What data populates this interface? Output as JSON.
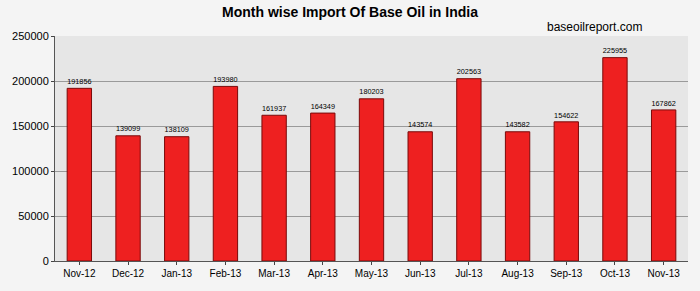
{
  "chart_data": {
    "type": "bar",
    "title": "Month wise Import Of Base Oil in India",
    "annotations": [
      "baseoilreport.com"
    ],
    "categories": [
      "Nov-12",
      "Dec-12",
      "Jan-13",
      "Feb-13",
      "Mar-13",
      "Apr-13",
      "May-13",
      "Jun-13",
      "Jul-13",
      "Aug-13",
      "Sep-13",
      "Oct-13",
      "Nov-13"
    ],
    "values": [
      191856,
      139099,
      138109,
      193980,
      161937,
      164349,
      180203,
      143574,
      202563,
      143582,
      154622,
      225955,
      167862
    ],
    "color": "#ee2020",
    "ylim": [
      0,
      250000
    ],
    "yticks": [
      0,
      50000,
      100000,
      150000,
      200000,
      250000
    ],
    "grid": true,
    "data_labels": true
  }
}
